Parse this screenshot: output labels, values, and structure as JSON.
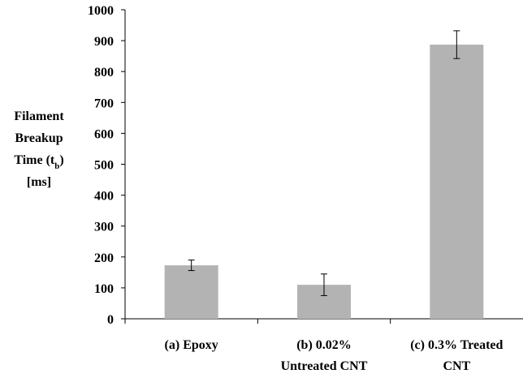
{
  "chart_data": {
    "type": "bar",
    "categories": [
      [
        "(a) Epoxy"
      ],
      [
        "(b) 0.02%",
        "Untreated CNT"
      ],
      [
        "(c) 0.3% Treated",
        "CNT"
      ]
    ],
    "values": [
      173,
      110,
      887
    ],
    "error": [
      17,
      35,
      45
    ],
    "title": "",
    "ylabel": {
      "lines": [
        "Filament",
        "Breakup",
        "Time (t",
        ")",
        "[ms]"
      ],
      "subscript": "b"
    },
    "ylim": [
      0,
      1000
    ],
    "yticks": [
      0,
      100,
      200,
      300,
      400,
      500,
      600,
      700,
      800,
      900,
      1000
    ],
    "grid": false,
    "bar_color": "#b3b3b3"
  }
}
